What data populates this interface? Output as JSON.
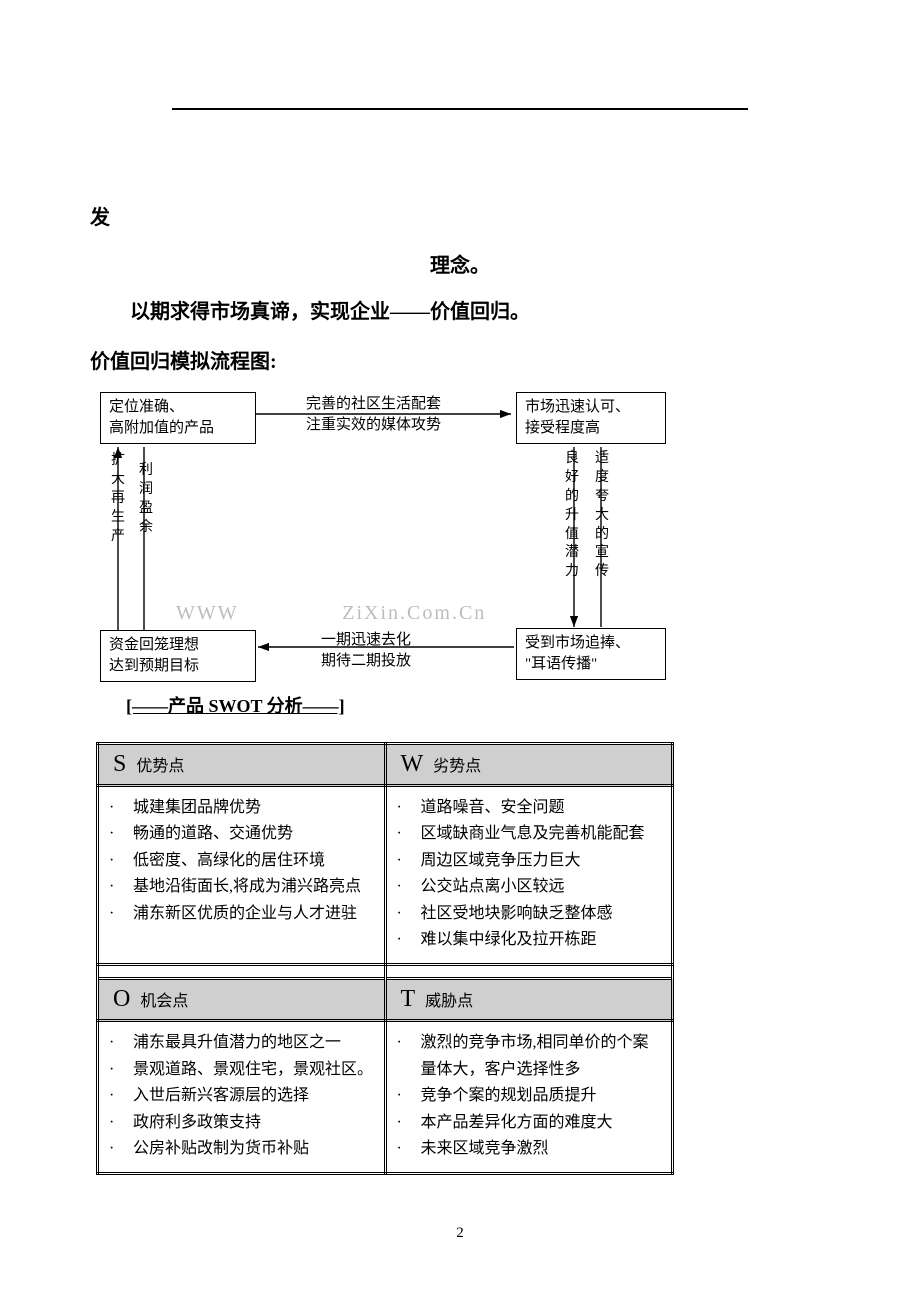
{
  "intro": {
    "fa": "发",
    "linian": "理念。",
    "value_line": "以期求得市场真谛，实现企业——价值回归。",
    "flow_title": "价值回归模拟流程图:"
  },
  "flow": {
    "box_tl_1": "定位准确、",
    "box_tl_2": "高附加值的产品",
    "mid_top_1": "完善的社区生活配套",
    "mid_top_2": "注重实效的媒体攻势",
    "box_tr_1": "市场迅速认可、",
    "box_tr_2": "接受程度高",
    "vleft_out": "扩大再生产",
    "vleft_in": "利润盈余",
    "vright_left": "良好的升值潜力",
    "vright_right": "适度夸大的宣传",
    "box_bl_1": "资金回笼理想",
    "box_bl_2": "达到预期目标",
    "mid_bot_1": "一期迅速去化",
    "mid_bot_2": "期待二期投放",
    "box_br_1": "受到市场追捧、",
    "box_br_2": "\"耳语传播\"",
    "watermark_left": "WWW",
    "watermark_right": "ZiXin.Com.Cn"
  },
  "section_title": "[——产品 SWOT 分析——]",
  "swot": {
    "s": {
      "letter": "S",
      "label": "优势点",
      "items": [
        "城建集团品牌优势",
        "畅通的道路、交通优势",
        "低密度、高绿化的居住环境",
        "基地沿街面长,将成为浦兴路亮点",
        "浦东新区优质的企业与人才进驻"
      ]
    },
    "w": {
      "letter": "W",
      "label": "劣势点",
      "items": [
        "道路噪音、安全问题",
        "区域缺商业气息及完善机能配套",
        "周边区域竞争压力巨大",
        "公交站点离小区较远",
        "社区受地块影响缺乏整体感",
        "难以集中绿化及拉开栋距"
      ]
    },
    "o": {
      "letter": "O",
      "label": "机会点",
      "items": [
        "浦东最具升值潜力的地区之一",
        "景观道路、景观住宅，景观社区。",
        "入世后新兴客源层的选择",
        "政府利多政策支持",
        "公房补贴改制为货币补贴"
      ]
    },
    "t": {
      "letter": "T",
      "label": "威胁点",
      "items": [
        "激烈的竞争市场,相同单价的个案量体大，客户选择性多",
        "竞争个案的规划品质提升",
        "本产品差异化方面的难度大",
        "未来区域竞争激烈"
      ]
    }
  },
  "page_num": "2",
  "colors": {
    "header_bg": "#cfcfcf",
    "watermark": "#bdbdbd",
    "text": "#000000"
  }
}
